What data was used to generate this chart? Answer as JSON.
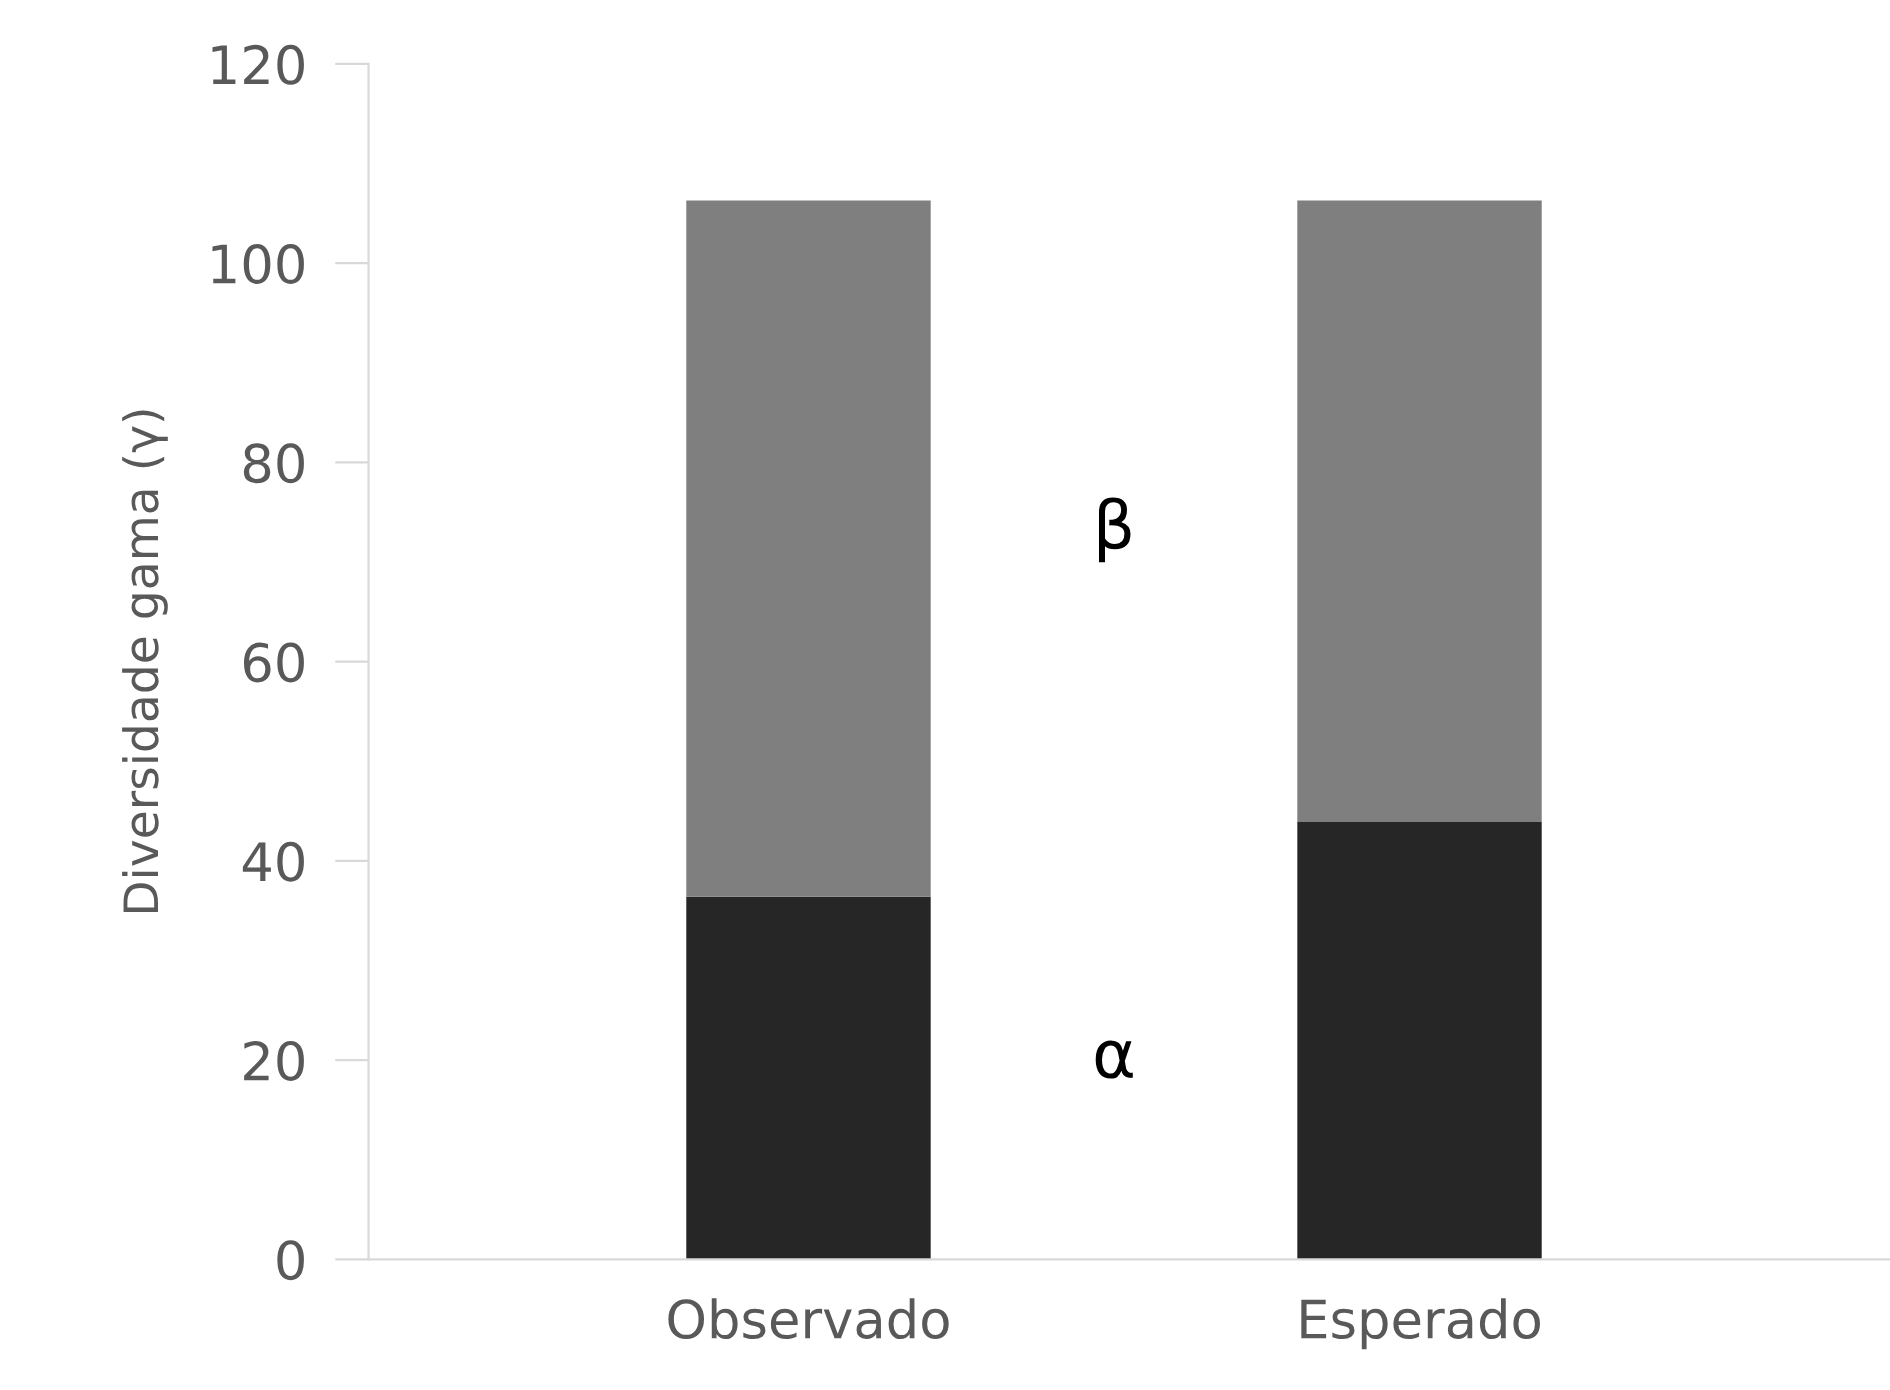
{
  "chart_data": {
    "type": "bar",
    "stacked": true,
    "ylabel": "Diversidade gama (γ)",
    "categories": [
      "Observado",
      "Esperado"
    ],
    "series": [
      {
        "name": "α",
        "color": "#262626",
        "values": [
          36.4,
          43.9
        ]
      },
      {
        "name": "β",
        "color": "#7f7f7f",
        "values": [
          69.9,
          62.4
        ]
      }
    ],
    "ylim": [
      0,
      120
    ],
    "yticks": [
      0,
      20,
      40,
      60,
      80,
      100,
      120
    ],
    "grid": false,
    "legend": false
  }
}
